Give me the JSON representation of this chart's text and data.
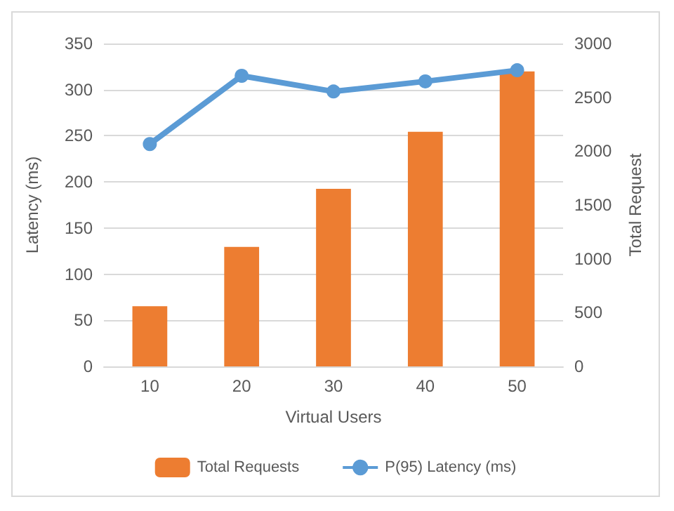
{
  "chart_data": {
    "type": "bar",
    "xlabel": "Virtual Users",
    "ylabel": "Latency (ms)",
    "y2label": "Total Request",
    "categories": [
      "10",
      "20",
      "30",
      "40",
      "50"
    ],
    "series": [
      {
        "name": "Total Requests",
        "axis": "y2",
        "color": "#ed7d31",
        "values": [
          560,
          1110,
          1650,
          2180,
          2740
        ]
      },
      {
        "name": "P(95) Latency (ms)",
        "type": "line",
        "color": "#5b9bd5",
        "values": [
          241,
          315,
          298,
          309,
          321
        ]
      }
    ],
    "ylim": [
      0,
      350
    ],
    "yticks": [
      0,
      50,
      100,
      150,
      200,
      250,
      300,
      350
    ],
    "y2lim": [
      0,
      3000
    ],
    "y2ticks": [
      0,
      500,
      1000,
      1500,
      2000,
      2500,
      3000
    ],
    "grid": "y",
    "legend": "bottom",
    "marker": "circle"
  }
}
